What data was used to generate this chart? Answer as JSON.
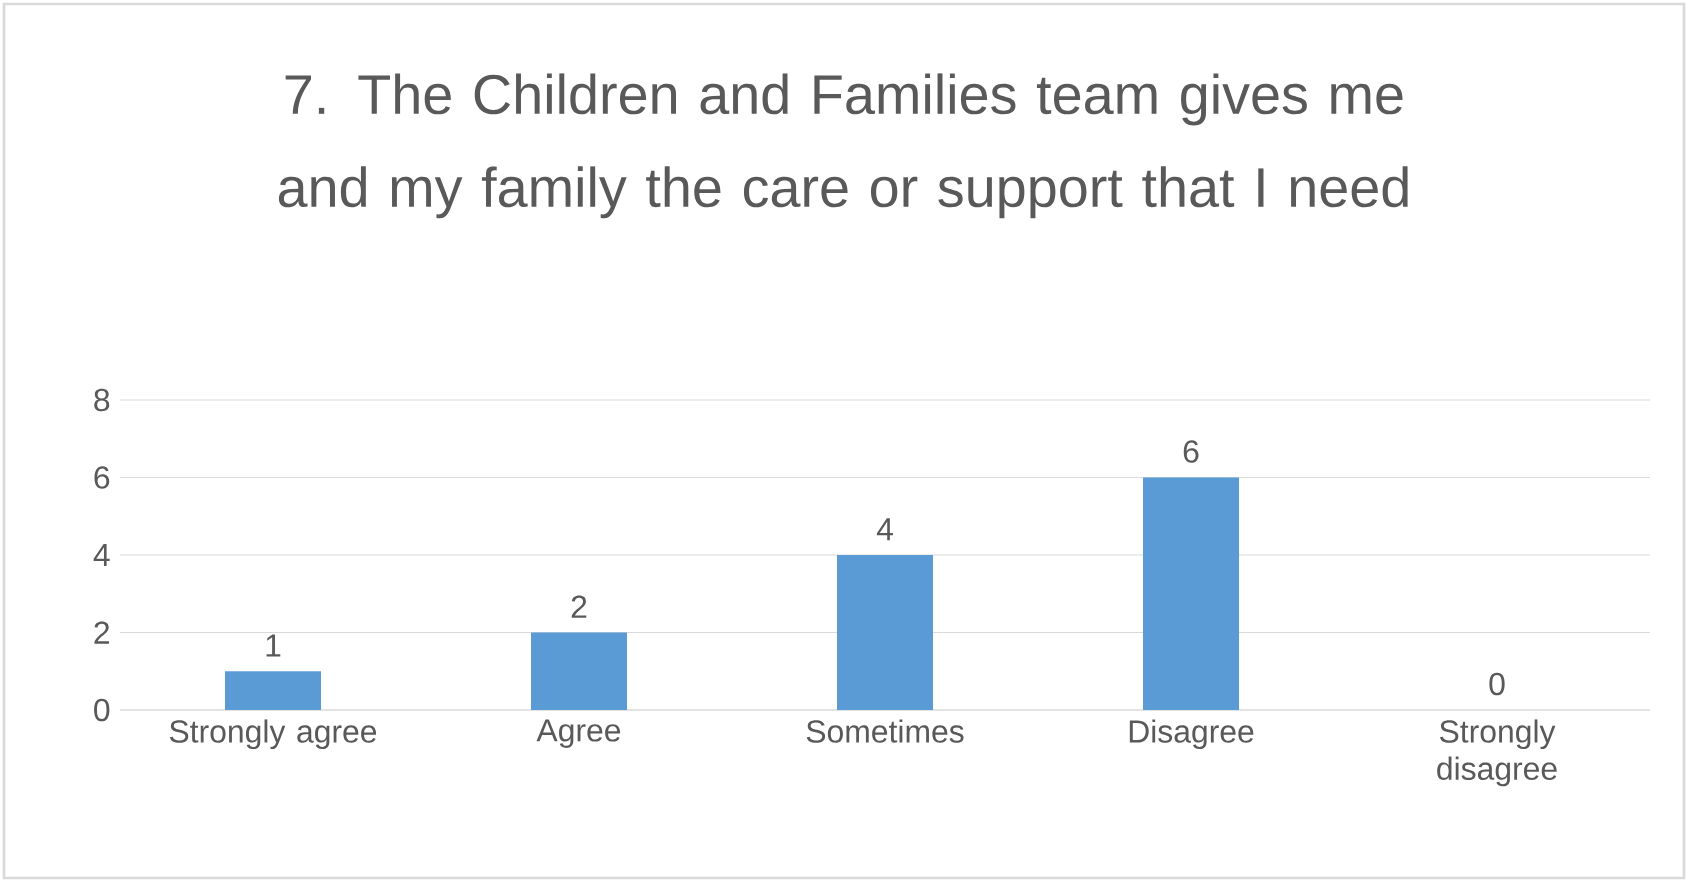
{
  "chart_data": {
    "type": "bar",
    "title": "7.  The Children and Families team gives me and my family the care or support that I need",
    "categories": [
      "Strongly agree",
      "Agree",
      "Sometimes",
      "Disagree",
      "Strongly disagree"
    ],
    "values": [
      1,
      2,
      4,
      6,
      0
    ],
    "color": "#5b9bd5",
    "ylim": [
      0,
      8
    ],
    "yticks": [
      0,
      2,
      4,
      6,
      8
    ],
    "grid": "y",
    "data_labels": true
  }
}
